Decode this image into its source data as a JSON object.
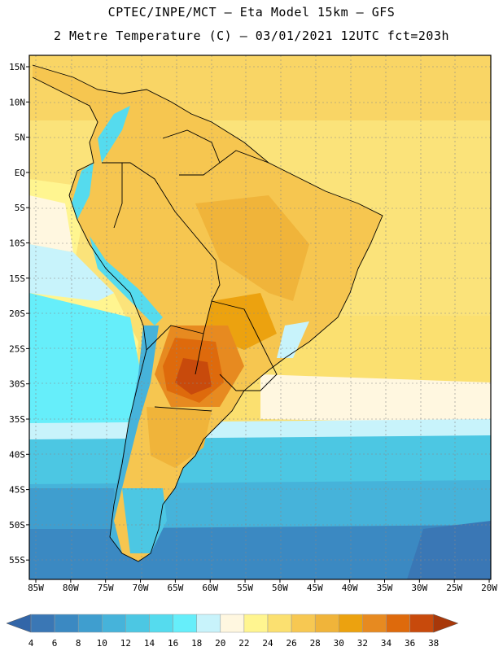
{
  "header": {
    "line1": "CPTEC/INPE/MCT –  Eta Model 15km – GFS",
    "line2": "2 Metre Temperature (C) – 03/01/2021 12UTC fct=203h"
  },
  "map": {
    "lat_labels": [
      "15N",
      "10N",
      "5N",
      "EQ",
      "5S",
      "10S",
      "15S",
      "20S",
      "25S",
      "30S",
      "35S",
      "40S",
      "45S",
      "50S",
      "55S"
    ],
    "lon_labels": [
      "85W",
      "80W",
      "75W",
      "70W",
      "65W",
      "60W",
      "55W",
      "50W",
      "45W",
      "40W",
      "35W",
      "30W",
      "25W",
      "20W"
    ]
  },
  "colorbar": {
    "labels": [
      "4",
      "6",
      "8",
      "10",
      "12",
      "14",
      "16",
      "18",
      "20",
      "22",
      "24",
      "26",
      "28",
      "30",
      "32",
      "34",
      "36",
      "38"
    ],
    "colors": [
      "#3a77b5",
      "#3b89c2",
      "#3f9ecf",
      "#46b3da",
      "#4cc7e3",
      "#55dbee",
      "#66eefa",
      "#c8f3fb",
      "#fff7e0",
      "#fff590",
      "#fbe070",
      "#f7c852",
      "#f0b43a",
      "#eca20f",
      "#e78a20",
      "#de6a0c",
      "#c84a0c",
      "#b83c08"
    ],
    "low_color": "#3266a8",
    "high_color": "#a8380a"
  }
}
